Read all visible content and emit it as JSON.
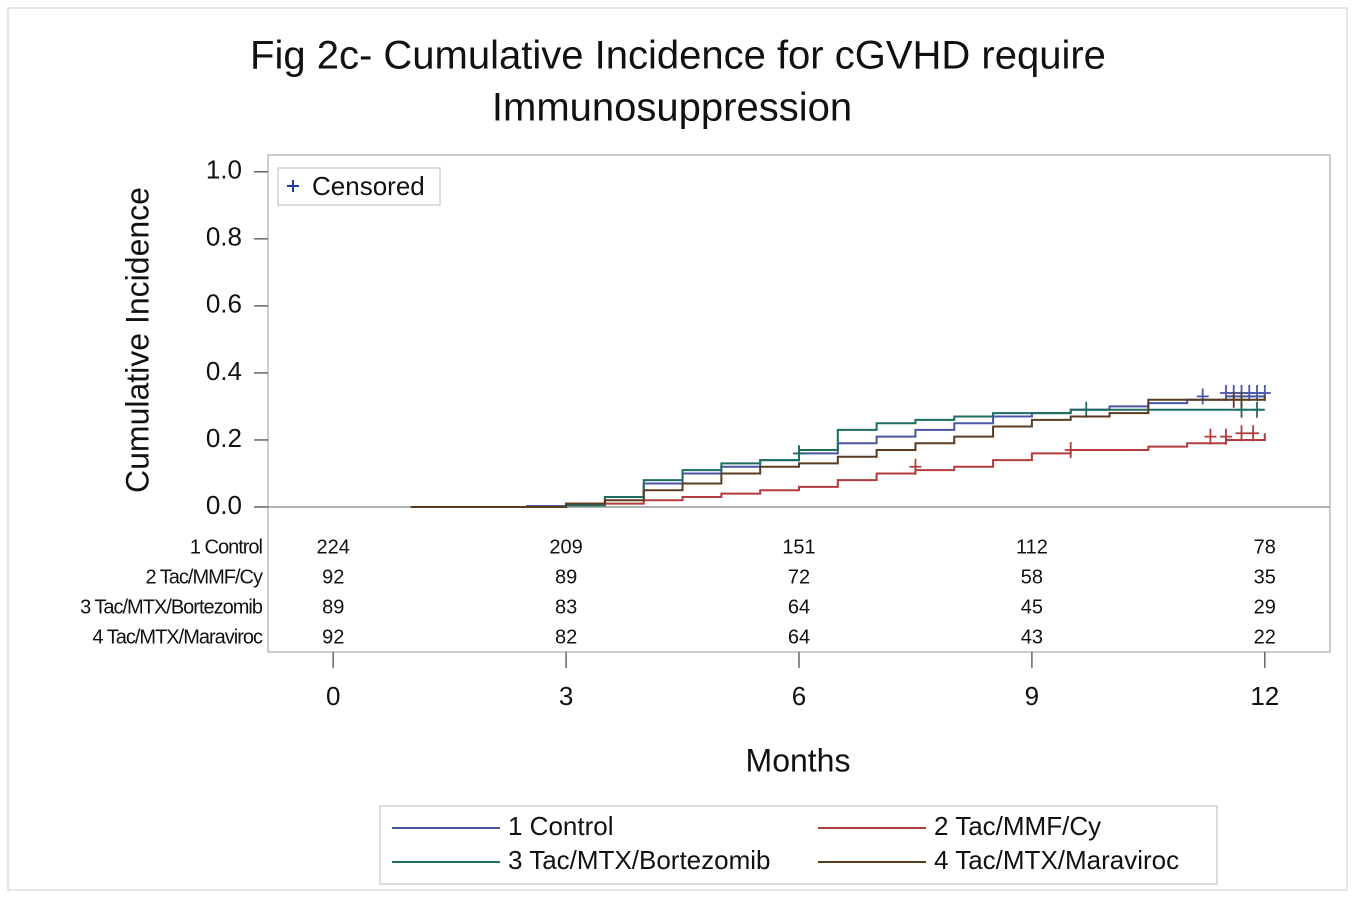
{
  "chart_data": {
    "type": "step",
    "title": [
      "Fig 2c- Cumulative Incidence for cGVHD require",
      "Immunosuppression"
    ],
    "xlabel": "Months",
    "ylabel": "Cumulative Incidence",
    "censored_label": "Censored",
    "censored_color": "#1f3f99",
    "xlim": [
      -0.84,
      12.84
    ],
    "xticks": [
      0,
      3,
      6,
      9,
      12
    ],
    "ylim": [
      0,
      1.05
    ],
    "yticks": [
      {
        "value": 0,
        "label": "0.0"
      },
      0.2,
      0.4,
      0.6,
      0.8,
      {
        "value": 1,
        "label": "1.0"
      }
    ],
    "x": [
      1,
      1.5,
      2,
      2.5,
      3,
      3.5,
      4,
      4.5,
      5,
      5.5,
      6,
      6.5,
      7,
      7.5,
      8,
      8.5,
      9,
      9.5,
      10,
      10.5,
      11,
      11.5,
      12
    ],
    "series": [
      {
        "name": "1 Control",
        "color": "#4a55a8",
        "values": [
          0,
          0,
          0,
          0.003,
          0.01,
          0.03,
          0.07,
          0.1,
          0.12,
          0.14,
          0.16,
          0.19,
          0.21,
          0.23,
          0.25,
          0.27,
          0.28,
          0.29,
          0.3,
          0.31,
          0.32,
          0.33,
          0.34
        ],
        "censored": {
          "x": [
            6.0,
            11.2,
            11.5,
            11.6,
            11.7,
            11.8,
            11.9,
            12.0
          ],
          "y": [
            0.16,
            0.33,
            0.34,
            0.34,
            0.34,
            0.34,
            0.34,
            0.34
          ]
        }
      },
      {
        "name": "2 Tac/MMF/Cy",
        "color": "#b23b3b",
        "values": [
          0,
          0,
          0,
          0,
          0.01,
          0.01,
          0.02,
          0.03,
          0.04,
          0.05,
          0.06,
          0.08,
          0.1,
          0.11,
          0.12,
          0.14,
          0.16,
          0.17,
          0.17,
          0.18,
          0.19,
          0.2,
          0.22
        ],
        "censored": {
          "x": [
            7.5,
            9.5,
            11.3,
            11.5,
            11.7,
            11.85
          ],
          "y": [
            0.12,
            0.17,
            0.21,
            0.21,
            0.22,
            0.22
          ]
        }
      },
      {
        "name": "3 Tac/MTX/Bortezomib",
        "color": "#1d6e5f",
        "values": [
          0,
          0,
          0,
          0,
          0.005,
          0.03,
          0.08,
          0.11,
          0.13,
          0.14,
          0.17,
          0.23,
          0.25,
          0.26,
          0.27,
          0.28,
          0.28,
          0.29,
          0.29,
          0.29,
          0.29,
          0.29,
          0.29
        ],
        "censored": {
          "x": [
            6.0,
            9.7,
            11.7,
            11.9
          ],
          "y": [
            0.16,
            0.29,
            0.29,
            0.29
          ]
        }
      },
      {
        "name": "4 Tac/MTX/Maraviroc",
        "color": "#5b3c20",
        "values": [
          0,
          0,
          0,
          0,
          0.01,
          0.02,
          0.05,
          0.07,
          0.1,
          0.12,
          0.13,
          0.15,
          0.17,
          0.19,
          0.21,
          0.24,
          0.26,
          0.27,
          0.28,
          0.32,
          0.32,
          0.32,
          0.33
        ],
        "censored": {
          "x": [
            11.6,
            11.7
          ],
          "y": [
            0.32,
            0.32
          ]
        }
      }
    ],
    "at_risk": {
      "x": [
        0,
        3,
        6,
        9,
        12
      ],
      "rows": [
        [
          224,
          209,
          151,
          112,
          78
        ],
        [
          92,
          89,
          72,
          58,
          35
        ],
        [
          89,
          83,
          64,
          45,
          29
        ],
        [
          92,
          82,
          64,
          43,
          22
        ]
      ]
    }
  }
}
